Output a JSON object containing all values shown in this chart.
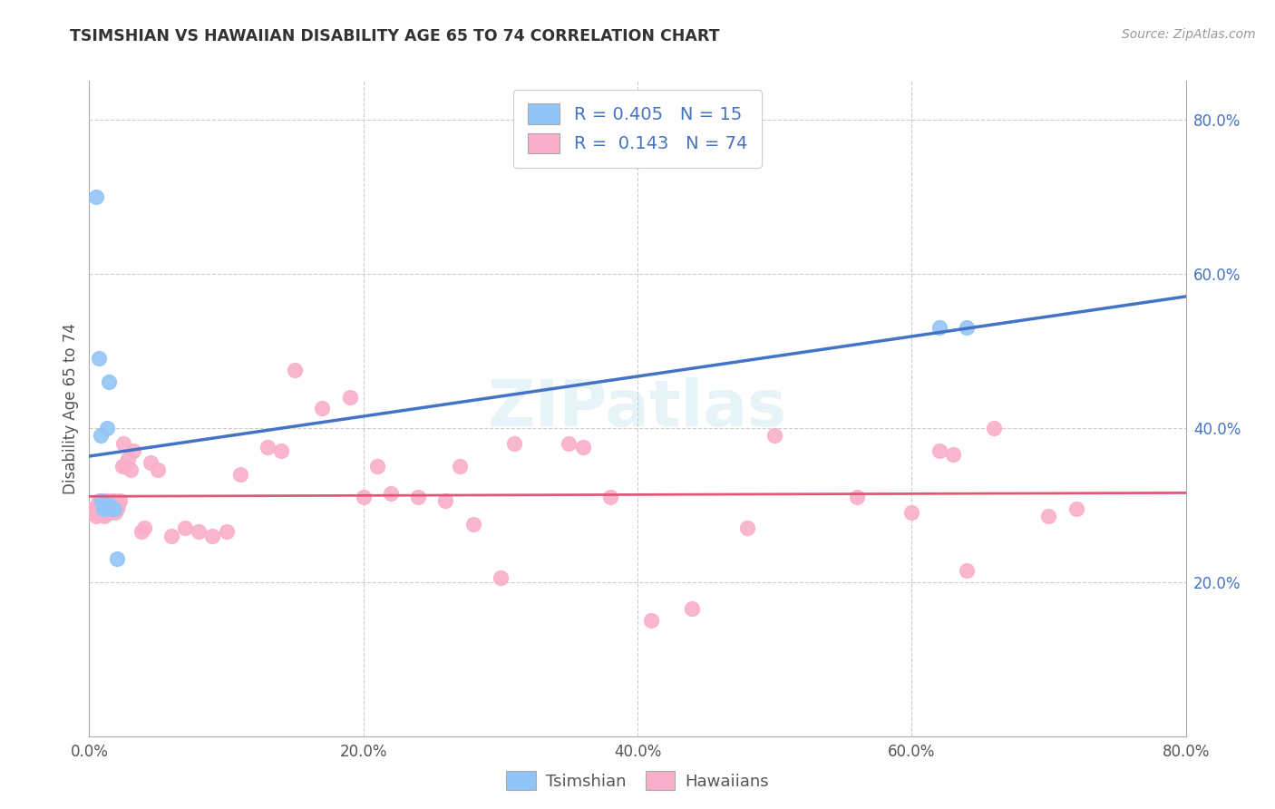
{
  "title": "TSIMSHIAN VS HAWAIIAN DISABILITY AGE 65 TO 74 CORRELATION CHART",
  "source": "Source: ZipAtlas.com",
  "ylabel": "Disability Age 65 to 74",
  "xlim": [
    0.0,
    0.8
  ],
  "ylim": [
    0.0,
    0.85
  ],
  "xticks": [
    0.0,
    0.2,
    0.4,
    0.6,
    0.8
  ],
  "xticklabels": [
    "0.0%",
    "20.0%",
    "40.0%",
    "60.0%",
    "80.0%"
  ],
  "yticks_right": [
    0.2,
    0.4,
    0.6,
    0.8
  ],
  "yticklabels_right": [
    "20.0%",
    "40.0%",
    "60.0%",
    "80.0%"
  ],
  "tsimshian_color": "#92C5F7",
  "hawaiian_color": "#F9AECA",
  "tsimshian_line_color": "#4472C4",
  "hawaiian_line_color": "#E05878",
  "background_color": "#FFFFFF",
  "grid_color": "#CCCCCC",
  "watermark": "ZIPatlas",
  "tsimshian_x": [
    0.005,
    0.007,
    0.008,
    0.009,
    0.01,
    0.011,
    0.012,
    0.013,
    0.014,
    0.015,
    0.016,
    0.018,
    0.02,
    0.62,
    0.64
  ],
  "tsimshian_y": [
    0.7,
    0.49,
    0.39,
    0.305,
    0.295,
    0.295,
    0.3,
    0.4,
    0.46,
    0.3,
    0.295,
    0.295,
    0.23,
    0.53,
    0.53
  ],
  "hawaiian_x": [
    0.002,
    0.003,
    0.004,
    0.005,
    0.006,
    0.007,
    0.007,
    0.008,
    0.008,
    0.009,
    0.01,
    0.01,
    0.011,
    0.012,
    0.012,
    0.013,
    0.013,
    0.014,
    0.014,
    0.015,
    0.015,
    0.016,
    0.016,
    0.017,
    0.018,
    0.019,
    0.02,
    0.021,
    0.022,
    0.024,
    0.025,
    0.026,
    0.028,
    0.03,
    0.032,
    0.038,
    0.04,
    0.045,
    0.05,
    0.06,
    0.07,
    0.08,
    0.09,
    0.1,
    0.11,
    0.13,
    0.14,
    0.15,
    0.17,
    0.19,
    0.2,
    0.21,
    0.22,
    0.24,
    0.26,
    0.27,
    0.28,
    0.3,
    0.31,
    0.35,
    0.36,
    0.38,
    0.41,
    0.44,
    0.48,
    0.5,
    0.56,
    0.6,
    0.62,
    0.63,
    0.64,
    0.66,
    0.7,
    0.72
  ],
  "hawaiian_y": [
    0.29,
    0.295,
    0.29,
    0.285,
    0.3,
    0.305,
    0.29,
    0.295,
    0.3,
    0.29,
    0.3,
    0.305,
    0.285,
    0.295,
    0.3,
    0.29,
    0.305,
    0.29,
    0.295,
    0.29,
    0.295,
    0.3,
    0.305,
    0.295,
    0.305,
    0.29,
    0.295,
    0.3,
    0.305,
    0.35,
    0.38,
    0.35,
    0.36,
    0.345,
    0.37,
    0.265,
    0.27,
    0.355,
    0.345,
    0.26,
    0.27,
    0.265,
    0.26,
    0.265,
    0.34,
    0.375,
    0.37,
    0.475,
    0.425,
    0.44,
    0.31,
    0.35,
    0.315,
    0.31,
    0.305,
    0.35,
    0.275,
    0.205,
    0.38,
    0.38,
    0.375,
    0.31,
    0.15,
    0.165,
    0.27,
    0.39,
    0.31,
    0.29,
    0.37,
    0.365,
    0.215,
    0.4,
    0.285,
    0.295
  ]
}
